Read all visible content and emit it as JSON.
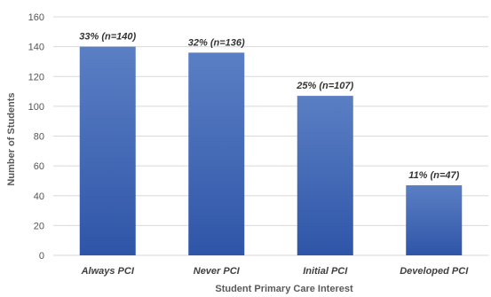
{
  "chart_data": {
    "type": "bar",
    "categories": [
      "Always PCI",
      "Never PCI",
      "Initial PCI",
      "Developed PCI"
    ],
    "values": [
      140,
      136,
      107,
      47
    ],
    "data_labels": [
      "33% (n=140)",
      "32% (n=136)",
      "25% (n=107)",
      "11% (n=47)"
    ],
    "title": "",
    "xlabel": "Student Primary Care Interest",
    "ylabel": "Number of Students",
    "ylim": [
      0,
      160
    ],
    "yticks": [
      0,
      20,
      40,
      60,
      80,
      100,
      120,
      140,
      160
    ],
    "grid": true,
    "legend": "none",
    "colors": {
      "bar_top": "#5b7fc4",
      "bar_bottom": "#2f55a8"
    }
  }
}
